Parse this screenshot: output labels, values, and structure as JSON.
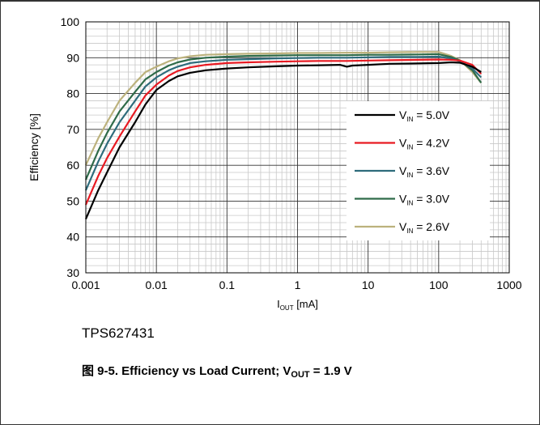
{
  "chart_data": {
    "type": "line",
    "xscale": "log",
    "xlim": [
      0.001,
      1000
    ],
    "ylim": [
      30,
      100
    ],
    "xticks": [
      "0.001",
      "0.01",
      "0.1",
      "1",
      "10",
      "100",
      "1000"
    ],
    "yticks": [
      "30",
      "40",
      "50",
      "60",
      "70",
      "80",
      "90",
      "100"
    ],
    "xlabel": {
      "main": "I",
      "sub": "OUT",
      "tail": " [mA]"
    },
    "ylabel": "Efficiency [%]",
    "grid": true,
    "legend_position": "right",
    "series": [
      {
        "name": "V_IN = 5.0V",
        "legend": {
          "pre": "V",
          "sub": "IN",
          "post": " = 5.0V"
        },
        "color": "#000000",
        "x": [
          0.001,
          0.0015,
          0.002,
          0.003,
          0.005,
          0.007,
          0.01,
          0.015,
          0.02,
          0.03,
          0.05,
          0.1,
          0.2,
          0.5,
          1,
          2,
          4,
          5,
          6,
          10,
          20,
          50,
          100,
          150,
          200,
          300,
          400
        ],
        "y": [
          45,
          53,
          58,
          65,
          72,
          77,
          81,
          83.5,
          84.8,
          85.8,
          86.5,
          87,
          87.3,
          87.6,
          87.8,
          87.9,
          88,
          87.5,
          87.8,
          88,
          88.3,
          88.4,
          88.5,
          88.7,
          88.6,
          87.5,
          86
        ]
      },
      {
        "name": "V_IN = 4.2V",
        "legend": {
          "pre": "V",
          "sub": "IN",
          "post": " = 4.2V"
        },
        "color": "#e81a22",
        "x": [
          0.001,
          0.0015,
          0.002,
          0.003,
          0.005,
          0.007,
          0.01,
          0.015,
          0.02,
          0.03,
          0.05,
          0.1,
          0.2,
          0.5,
          1,
          2,
          5,
          10,
          20,
          50,
          100,
          150,
          200,
          300,
          400
        ],
        "y": [
          49,
          57,
          62,
          68,
          75,
          79.5,
          82.5,
          85,
          86.3,
          87.3,
          88,
          88.5,
          88.7,
          88.9,
          89,
          89.1,
          89.1,
          89.2,
          89.3,
          89.4,
          89.5,
          89.4,
          89.2,
          88,
          85.5
        ]
      },
      {
        "name": "V_IN = 3.6V",
        "legend": {
          "pre": "V",
          "sub": "IN",
          "post": " = 3.6V"
        },
        "color": "#2e6c7c",
        "x": [
          0.001,
          0.0015,
          0.002,
          0.003,
          0.005,
          0.007,
          0.01,
          0.015,
          0.02,
          0.03,
          0.05,
          0.1,
          0.2,
          0.5,
          1,
          2,
          5,
          10,
          20,
          50,
          100,
          150,
          200,
          300,
          400
        ],
        "y": [
          53,
          61,
          66,
          72,
          78,
          82,
          84.5,
          86.5,
          87.5,
          88.5,
          89,
          89.4,
          89.6,
          89.8,
          89.9,
          90,
          90,
          90.1,
          90.2,
          90.2,
          90.3,
          89.8,
          89,
          87,
          84.5
        ]
      },
      {
        "name": "V_IN = 3.0V",
        "legend": {
          "pre": "V",
          "sub": "IN",
          "post": " = 3.0V"
        },
        "color": "#2f6b49",
        "x": [
          0.001,
          0.0015,
          0.002,
          0.003,
          0.005,
          0.007,
          0.01,
          0.015,
          0.02,
          0.03,
          0.05,
          0.1,
          0.2,
          0.5,
          1,
          2,
          5,
          10,
          20,
          50,
          100,
          150,
          200,
          300,
          400
        ],
        "y": [
          56,
          64,
          69,
          75,
          80.5,
          84,
          86,
          87.8,
          88.7,
          89.5,
          90,
          90.3,
          90.5,
          90.6,
          90.7,
          90.7,
          90.7,
          90.8,
          90.8,
          90.9,
          91,
          90.2,
          89.2,
          86.5,
          83
        ]
      },
      {
        "name": "V_IN = 2.6V",
        "legend": {
          "pre": "V",
          "sub": "IN",
          "post": " = 2.6V"
        },
        "color": "#bcb27d",
        "x": [
          0.001,
          0.0015,
          0.002,
          0.003,
          0.005,
          0.007,
          0.01,
          0.015,
          0.02,
          0.03,
          0.05,
          0.1,
          0.2,
          0.5,
          1,
          2,
          5,
          10,
          20,
          50,
          100,
          150,
          200,
          300,
          400
        ],
        "y": [
          60,
          67.5,
          72,
          78,
          83,
          86,
          87.5,
          89,
          89.8,
          90.4,
          90.8,
          91,
          91.1,
          91.2,
          91.3,
          91.3,
          91.4,
          91.4,
          91.5,
          91.6,
          91.6,
          90.5,
          89.3,
          86,
          83
        ]
      }
    ]
  },
  "part_number": "TPS627431",
  "caption": {
    "prefix": "图 9-5. Efficiency vs Load Current; V",
    "sub": "OUT",
    "suffix": " = 1.9 V"
  }
}
